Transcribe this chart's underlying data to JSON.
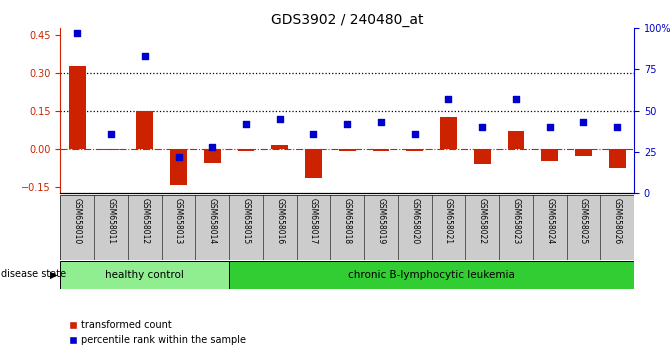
{
  "title": "GDS3902 / 240480_at",
  "samples": [
    "GSM658010",
    "GSM658011",
    "GSM658012",
    "GSM658013",
    "GSM658014",
    "GSM658015",
    "GSM658016",
    "GSM658017",
    "GSM658018",
    "GSM658019",
    "GSM658020",
    "GSM658021",
    "GSM658022",
    "GSM658023",
    "GSM658024",
    "GSM658025",
    "GSM658026"
  ],
  "bar_values": [
    0.325,
    -0.005,
    0.15,
    -0.145,
    -0.055,
    -0.01,
    0.015,
    -0.115,
    -0.01,
    -0.01,
    -0.01,
    0.125,
    -0.06,
    0.07,
    -0.05,
    -0.03,
    -0.075
  ],
  "dot_values": [
    97,
    36,
    83,
    22,
    28,
    42,
    45,
    36,
    42,
    43,
    36,
    57,
    40,
    57,
    40,
    43,
    40
  ],
  "bar_color": "#cc2200",
  "dot_color": "#0000cc",
  "ylim_left": [
    -0.175,
    0.475
  ],
  "ylim_right": [
    0,
    100
  ],
  "yticks_left": [
    -0.15,
    0.0,
    0.15,
    0.3,
    0.45
  ],
  "yticks_right": [
    0,
    25,
    50,
    75,
    100
  ],
  "ytick_labels_right": [
    "0",
    "25",
    "50",
    "75",
    "100%"
  ],
  "hline_dotted": [
    0.15,
    0.3
  ],
  "hline_dash": 0.0,
  "group1_label": "healthy control",
  "group2_label": "chronic B-lymphocytic leukemia",
  "group1_count": 5,
  "group2_count": 12,
  "legend_bar": "transformed count",
  "legend_dot": "percentile rank within the sample",
  "disease_state_label": "disease state",
  "background_color": "#ffffff",
  "plot_bg_color": "#ffffff",
  "group_color_1": "#90ee90",
  "group_color_2": "#32cd32",
  "xticklabel_bg": "#cccccc"
}
